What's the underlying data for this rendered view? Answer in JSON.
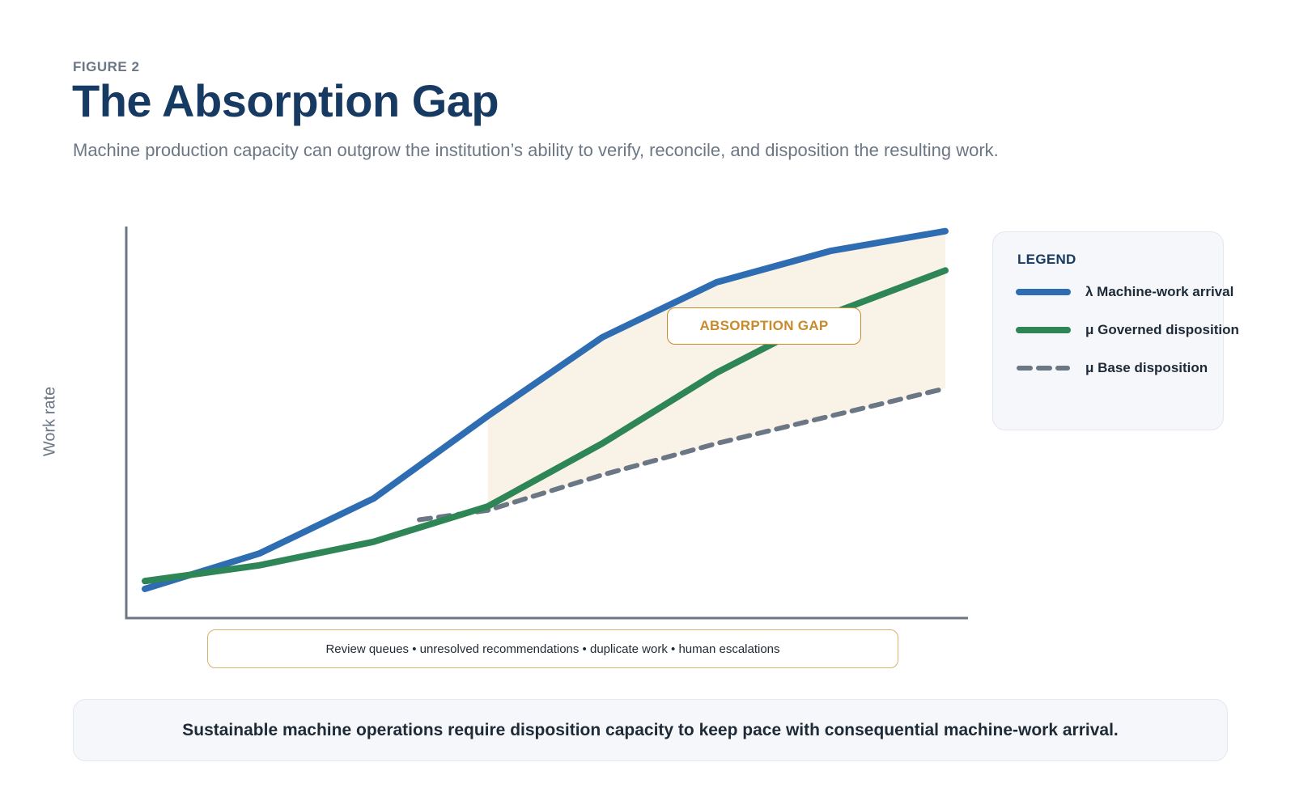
{
  "header": {
    "kicker": "FIGURE 2",
    "title": "The Absorption Gap",
    "subtitle": "Machine production capacity can outgrow the institution’s ability to verify, reconcile, and disposition the resulting work."
  },
  "chart_data": {
    "type": "line",
    "xlabel": "",
    "ylabel": "Work rate",
    "x": [
      1,
      2,
      3,
      4,
      5,
      6,
      7,
      8
    ],
    "ylim": [
      0,
      100
    ],
    "series": [
      {
        "key": "arrival",
        "name": "λ Machine-work arrival",
        "color": "#2f6db3",
        "dash": false,
        "values": [
          7,
          16,
          30,
          51,
          71,
          85,
          93,
          98
        ]
      },
      {
        "key": "governed",
        "name": "μ Governed disposition",
        "color": "#2e8555",
        "dash": false,
        "values": [
          9,
          13,
          19,
          28,
          44,
          62,
          77,
          88
        ]
      },
      {
        "key": "base",
        "name": "μ Base disposition",
        "color": "#6b7785",
        "dash": true,
        "x_start": 3.4,
        "values": [
          null,
          null,
          23,
          27,
          36,
          44,
          51,
          58
        ]
      }
    ],
    "gap_region": {
      "label": "ABSORPTION GAP",
      "x_from": 4,
      "x_to": 8,
      "upper": "arrival",
      "lower": "base",
      "color": "#f9f2e7"
    },
    "annotation_box": "Review queues • unresolved recommendations • duplicate work • human escalations",
    "legend": {
      "title": "LEGEND",
      "placement": "right"
    },
    "grid": false
  },
  "footer": {
    "conclusion": "Sustainable machine operations require disposition capacity to keep pace with consequential machine-work arrival."
  }
}
